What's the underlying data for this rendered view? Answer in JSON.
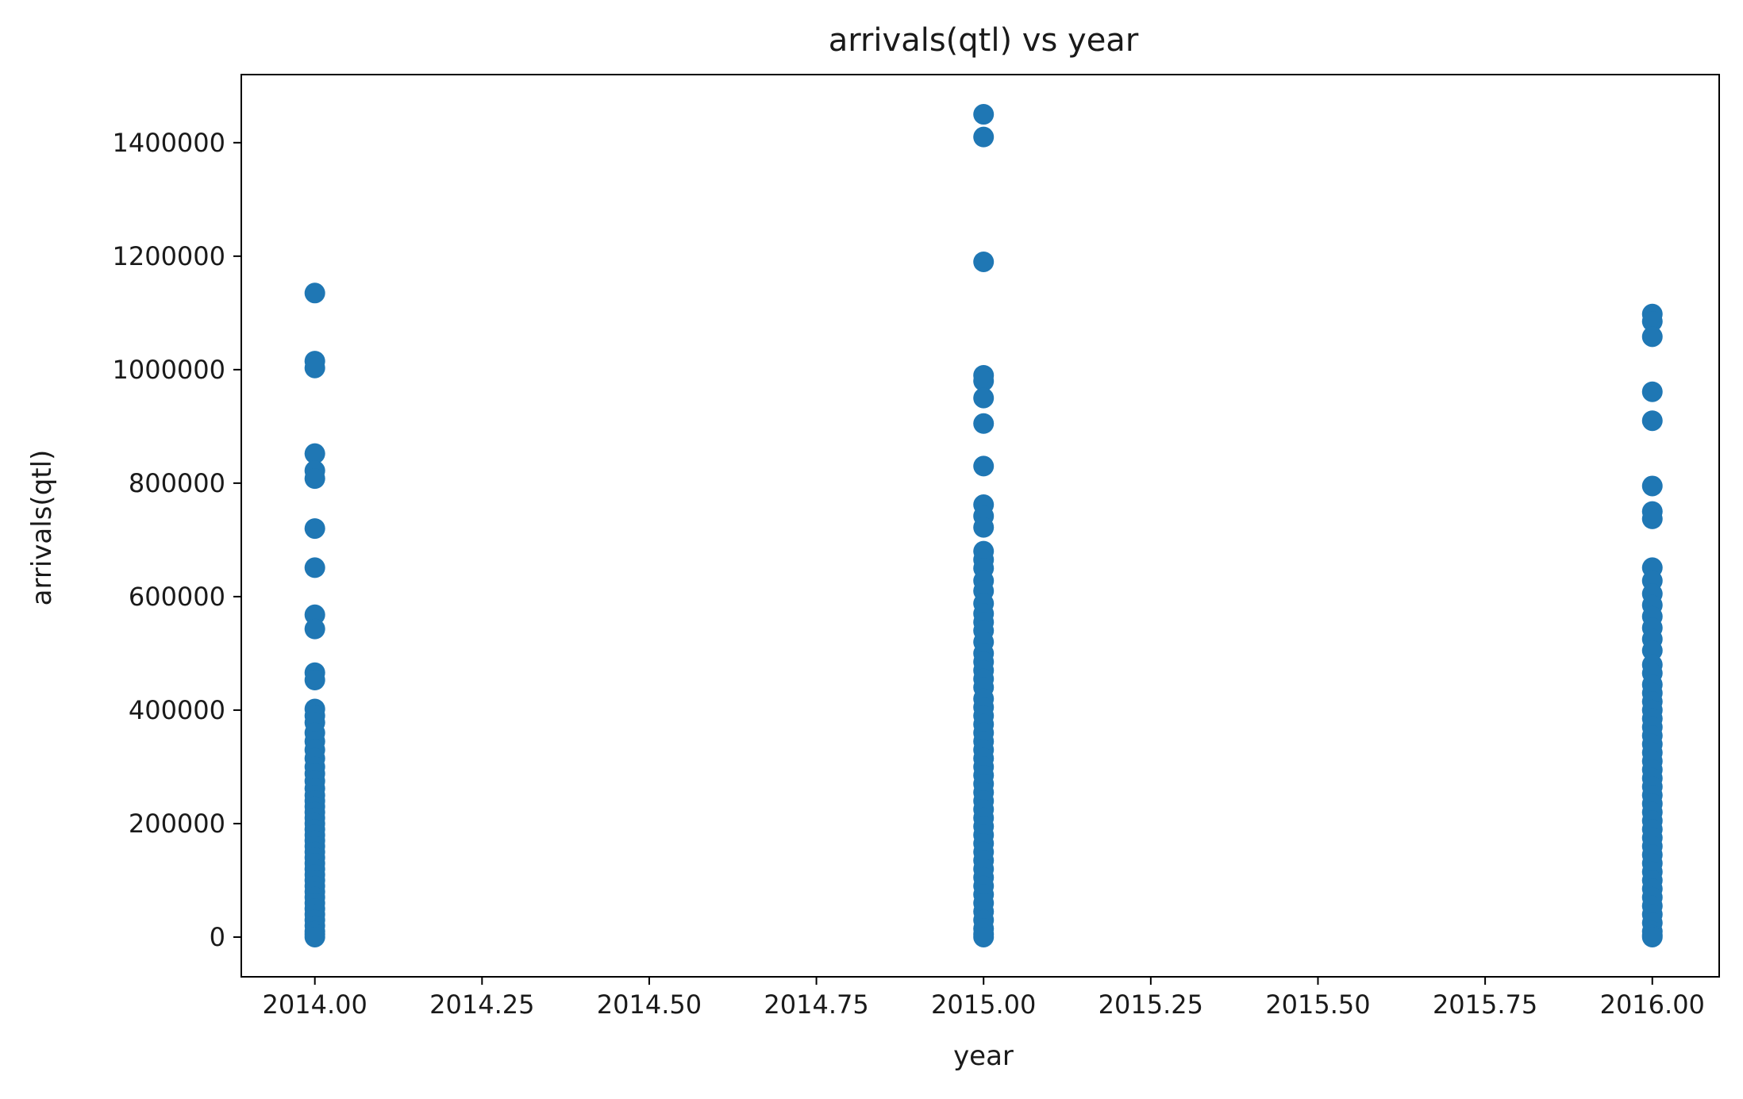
{
  "chart_data": {
    "type": "scatter",
    "title": "arrivals(qtl) vs year",
    "xlabel": "year",
    "ylabel": "arrivals(qtl)",
    "xlim": [
      2013.89,
      2016.1
    ],
    "ylim": [
      -70000,
      1520000
    ],
    "x_ticks": [
      2014.0,
      2014.25,
      2014.5,
      2014.75,
      2015.0,
      2015.25,
      2015.5,
      2015.75,
      2016.0
    ],
    "x_tick_labels": [
      "2014.00",
      "2014.25",
      "2014.50",
      "2014.75",
      "2015.00",
      "2015.25",
      "2015.50",
      "2015.75",
      "2016.00"
    ],
    "y_ticks": [
      0,
      200000,
      400000,
      600000,
      800000,
      1000000,
      1200000,
      1400000
    ],
    "y_tick_labels": [
      "0",
      "200000",
      "400000",
      "600000",
      "800000",
      "1000000",
      "1200000",
      "1400000"
    ],
    "grid": false,
    "marker_color": "#1f77b4",
    "series": [
      {
        "x": 2014,
        "values": [
          1135000,
          1015000,
          1003000,
          852000,
          822000,
          808000,
          720000,
          651000,
          568000,
          543000,
          466000,
          453000,
          402000,
          390000,
          378000,
          360000,
          345000,
          330000,
          315000,
          300000,
          288000,
          275000,
          262000,
          250000,
          240000,
          230000,
          220000,
          210000,
          200000,
          190000,
          180000,
          170000,
          160000,
          150000,
          140000,
          130000,
          120000,
          110000,
          100000,
          90000,
          80000,
          70000,
          60000,
          50000,
          40000,
          30000,
          20000,
          10000,
          5000,
          0
        ]
      },
      {
        "x": 2015,
        "values": [
          1450000,
          1410000,
          1190000,
          990000,
          980000,
          950000,
          905000,
          830000,
          762000,
          742000,
          722000,
          680000,
          665000,
          650000,
          628000,
          610000,
          588000,
          570000,
          555000,
          540000,
          520000,
          500000,
          485000,
          470000,
          455000,
          440000,
          420000,
          405000,
          390000,
          375000,
          360000,
          345000,
          330000,
          315000,
          300000,
          285000,
          270000,
          255000,
          240000,
          225000,
          210000,
          195000,
          180000,
          165000,
          150000,
          135000,
          120000,
          105000,
          90000,
          75000,
          60000,
          45000,
          30000,
          15000,
          5000,
          0
        ]
      },
      {
        "x": 2016,
        "values": [
          1098000,
          1085000,
          1058000,
          961000,
          910000,
          795000,
          750000,
          737000,
          651000,
          628000,
          605000,
          585000,
          565000,
          545000,
          525000,
          505000,
          480000,
          465000,
          445000,
          430000,
          415000,
          400000,
          385000,
          370000,
          355000,
          340000,
          325000,
          310000,
          295000,
          280000,
          265000,
          250000,
          235000,
          220000,
          205000,
          190000,
          175000,
          160000,
          145000,
          130000,
          115000,
          100000,
          85000,
          70000,
          55000,
          40000,
          25000,
          10000,
          3000,
          0
        ]
      }
    ]
  }
}
